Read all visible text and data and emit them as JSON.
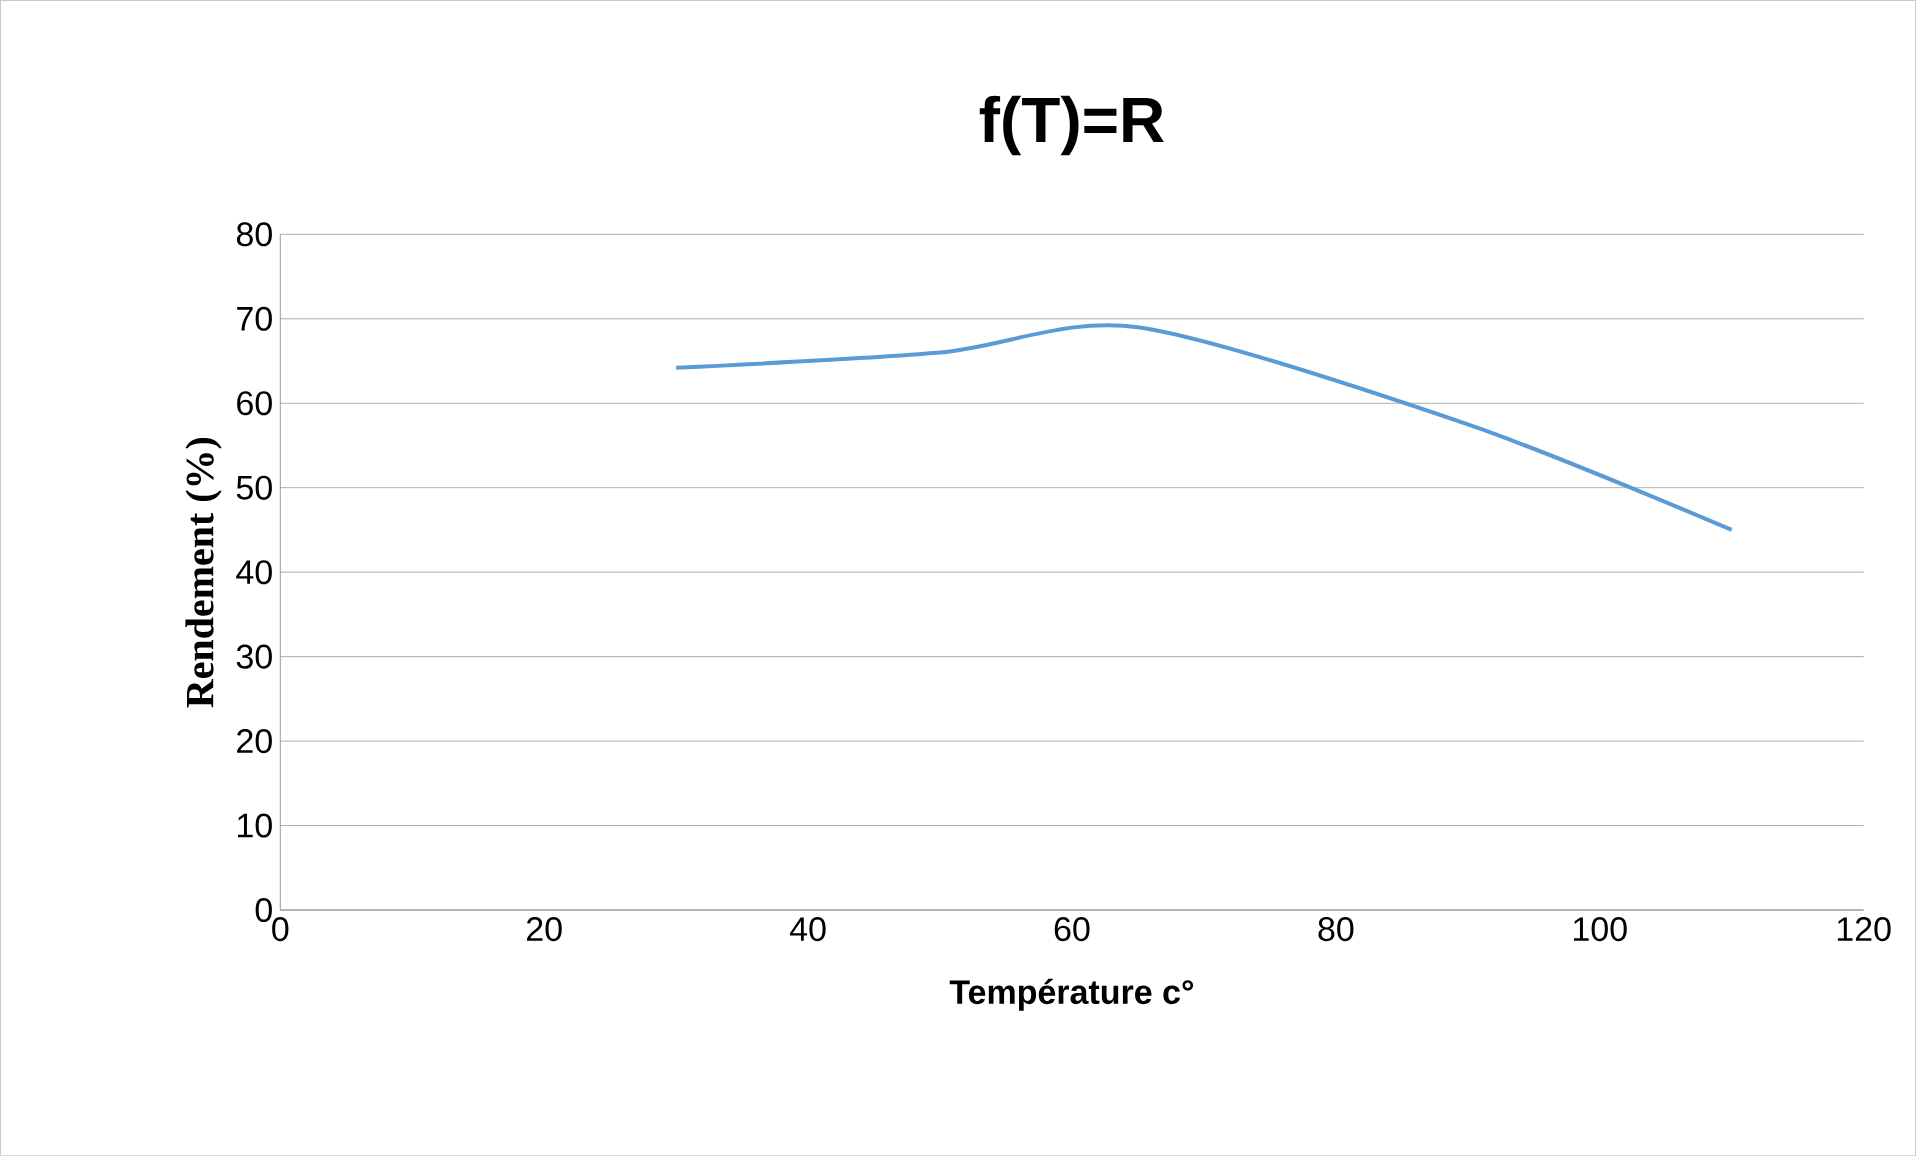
{
  "chart_data": {
    "type": "line",
    "title": "f(T)=R",
    "xlabel": "Température c°",
    "ylabel": "Rendement (%)",
    "x": [
      30,
      50,
      65,
      90,
      110
    ],
    "series": [
      {
        "color": "#5b9bd5",
        "values": [
          64.2,
          66,
          69,
          57.5,
          45
        ]
      }
    ],
    "xlim": [
      0,
      120
    ],
    "xticks": [
      0,
      20,
      40,
      60,
      80,
      100,
      120
    ],
    "ylim": [
      0,
      80
    ],
    "yticks": [
      0,
      10,
      20,
      30,
      40,
      50,
      60,
      70,
      80
    ],
    "grid": "y",
    "marker": "none",
    "line_style": "solid"
  }
}
